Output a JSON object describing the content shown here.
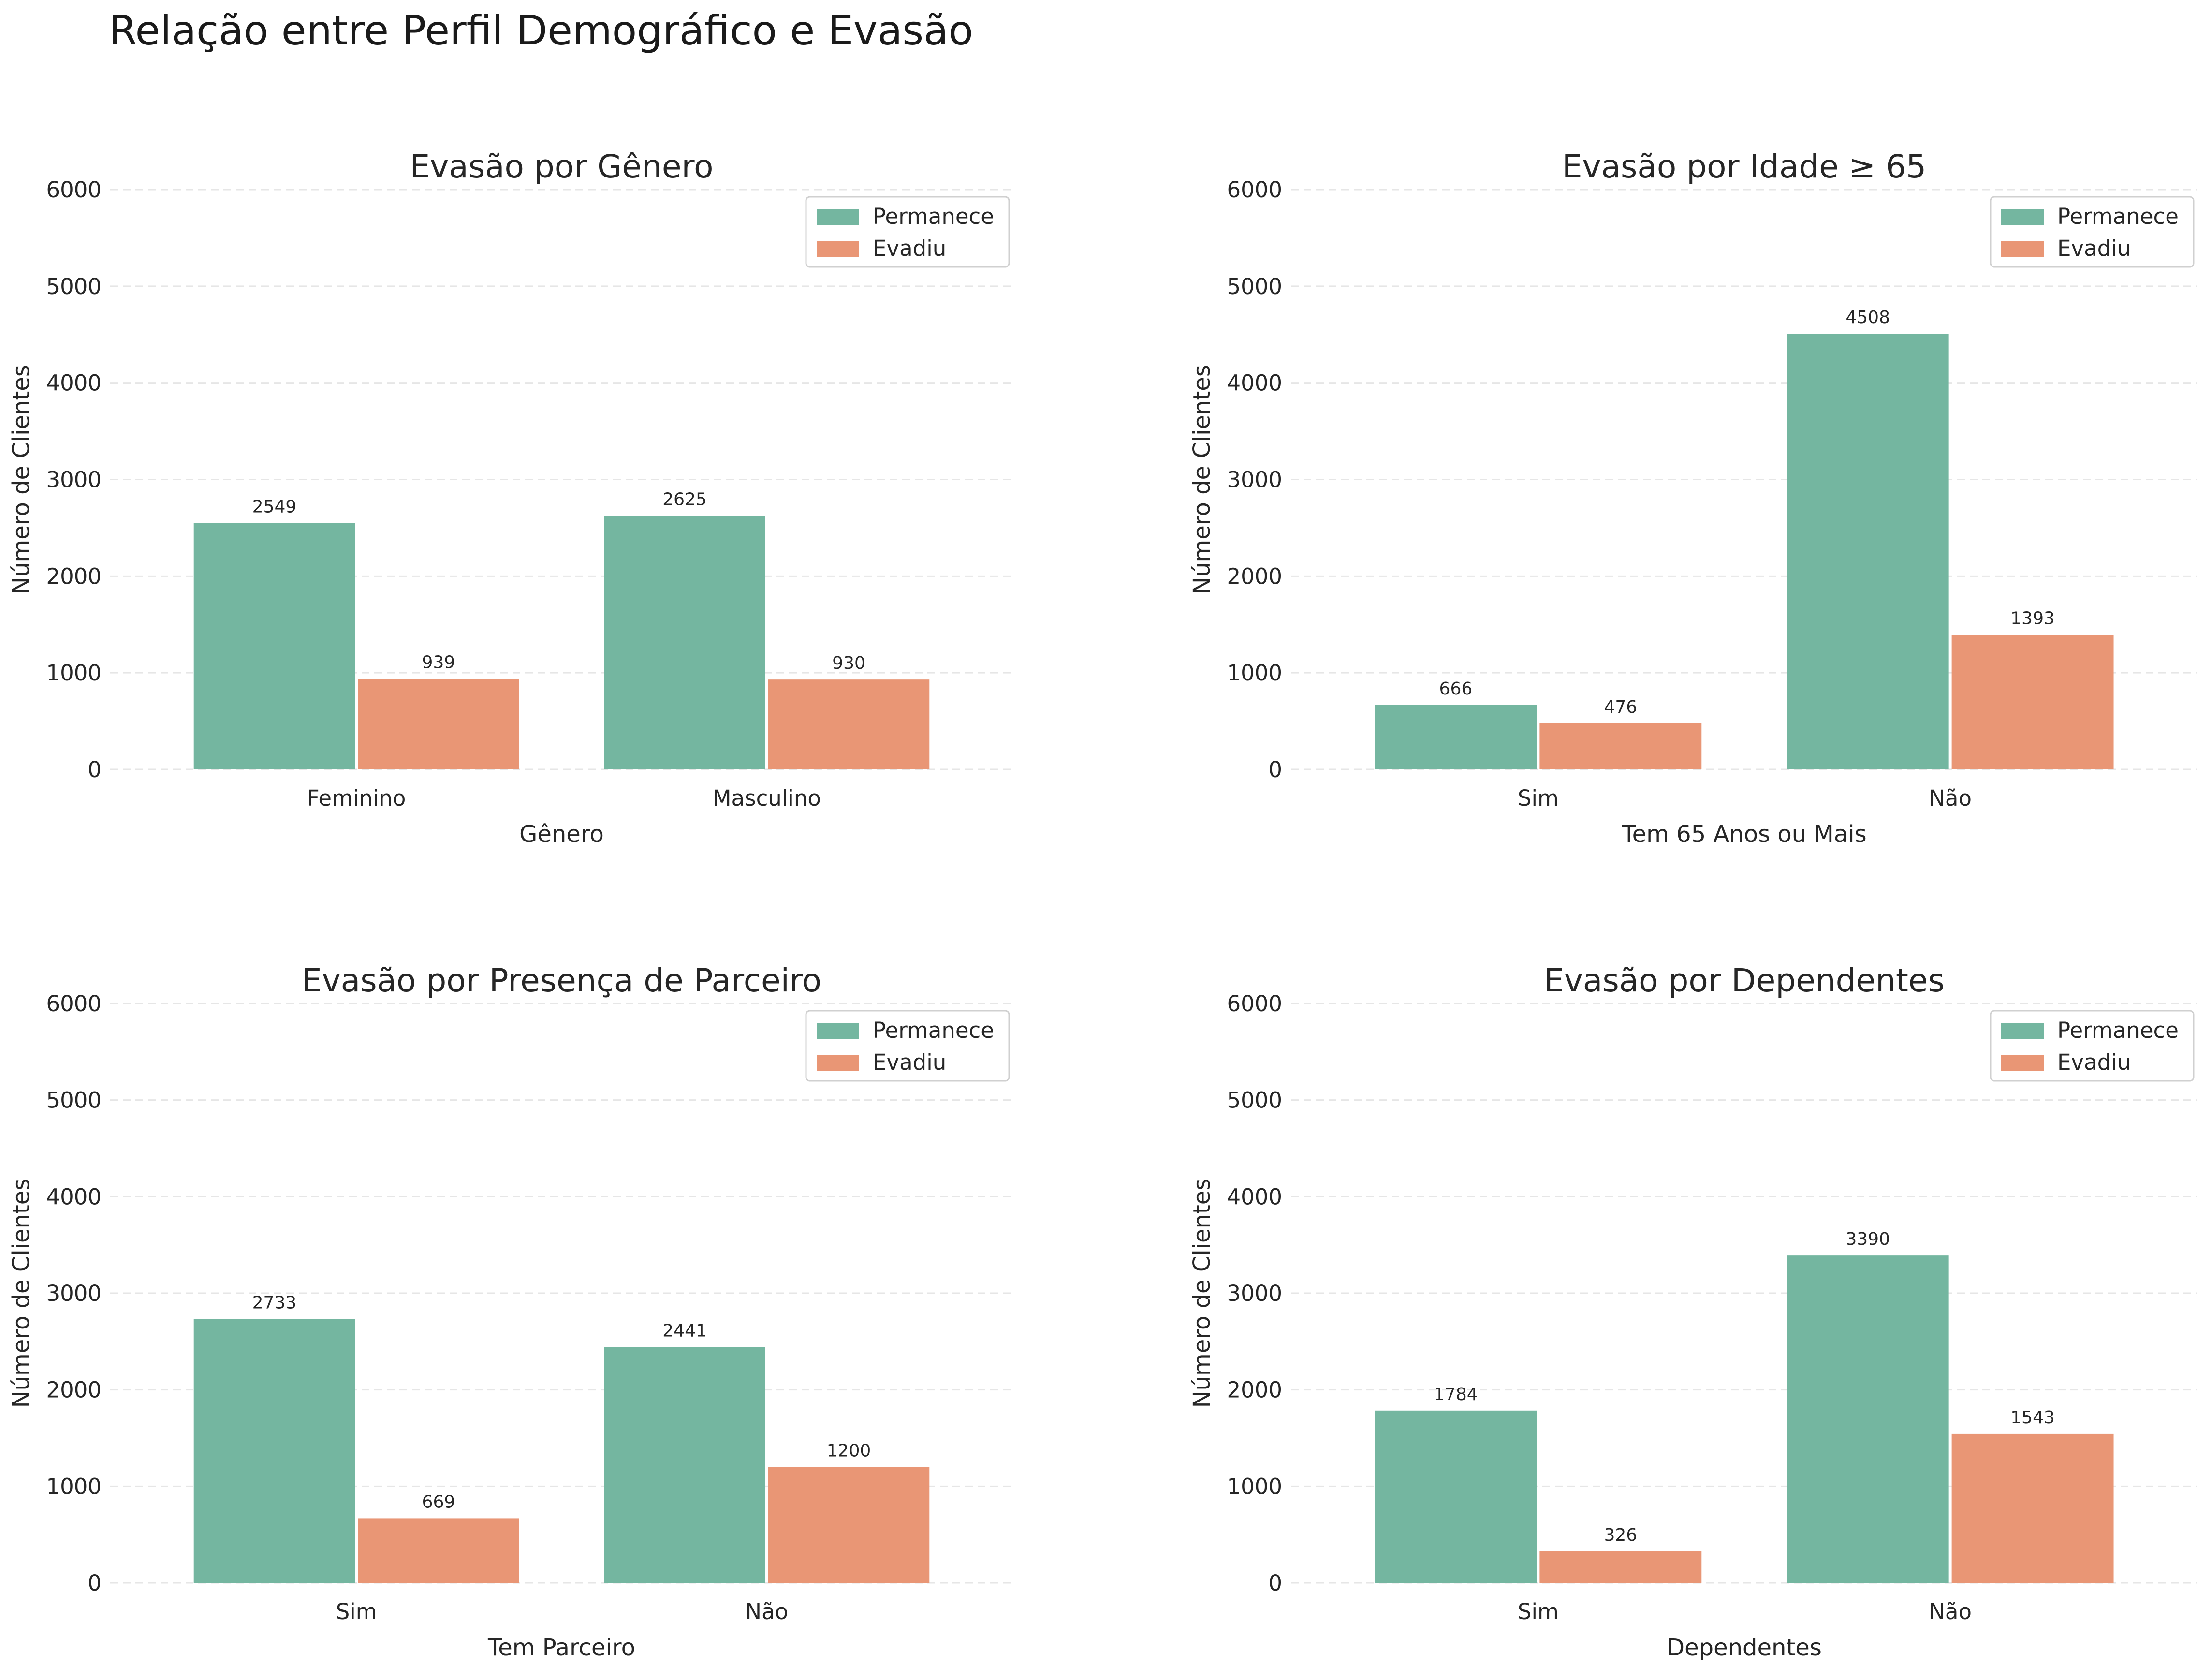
{
  "suptitle": "Relação entre Perfil Demográfico e Evasão",
  "colors": {
    "permanece": "#74b6a0",
    "evadiu": "#e99675",
    "grid": "#e6e6e6"
  },
  "chart_data": [
    {
      "type": "bar",
      "title": "Evasão por Gênero",
      "xlabel": "Gênero",
      "ylabel": "Número de Clientes",
      "categories": [
        "Feminino",
        "Masculino"
      ],
      "series": [
        {
          "name": "Permanece",
          "values": [
            2549,
            2625
          ]
        },
        {
          "name": "Evadiu",
          "values": [
            939,
            930
          ]
        }
      ],
      "ylim": [
        0,
        6000
      ],
      "yticks": [
        0,
        1000,
        2000,
        3000,
        4000,
        5000,
        6000
      ],
      "grid": "y",
      "legend": "top-right"
    },
    {
      "type": "bar",
      "title": "Evasão por Idade ≥ 65",
      "xlabel": "Tem 65 Anos ou Mais",
      "ylabel": "Número de Clientes",
      "categories": [
        "Sim",
        "Não"
      ],
      "series": [
        {
          "name": "Permanece",
          "values": [
            666,
            4508
          ]
        },
        {
          "name": "Evadiu",
          "values": [
            476,
            1393
          ]
        }
      ],
      "ylim": [
        0,
        6000
      ],
      "yticks": [
        0,
        1000,
        2000,
        3000,
        4000,
        5000,
        6000
      ],
      "grid": "y",
      "legend": "top-right"
    },
    {
      "type": "bar",
      "title": "Evasão por Presença de Parceiro",
      "xlabel": "Tem Parceiro",
      "ylabel": "Número de Clientes",
      "categories": [
        "Sim",
        "Não"
      ],
      "series": [
        {
          "name": "Permanece",
          "values": [
            2733,
            2441
          ]
        },
        {
          "name": "Evadiu",
          "values": [
            669,
            1200
          ]
        }
      ],
      "ylim": [
        0,
        6000
      ],
      "yticks": [
        0,
        1000,
        2000,
        3000,
        4000,
        5000,
        6000
      ],
      "grid": "y",
      "legend": "top-right"
    },
    {
      "type": "bar",
      "title": "Evasão por Dependentes",
      "xlabel": "Dependentes",
      "ylabel": "Número de Clientes",
      "categories": [
        "Sim",
        "Não"
      ],
      "series": [
        {
          "name": "Permanece",
          "values": [
            1784,
            3390
          ]
        },
        {
          "name": "Evadiu",
          "values": [
            326,
            1543
          ]
        }
      ],
      "ylim": [
        0,
        6000
      ],
      "yticks": [
        0,
        1000,
        2000,
        3000,
        4000,
        5000,
        6000
      ],
      "grid": "y",
      "legend": "top-right"
    }
  ]
}
